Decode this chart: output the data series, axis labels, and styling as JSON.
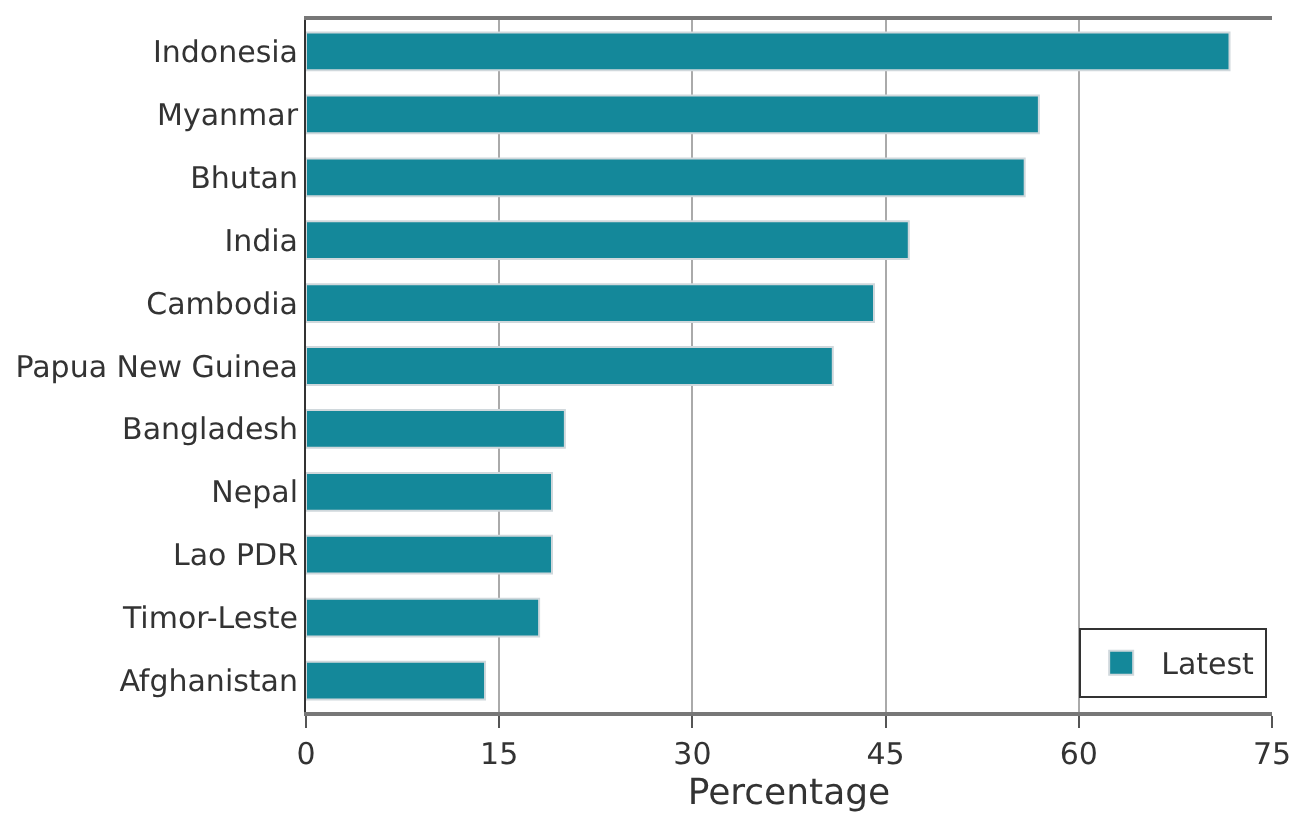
{
  "chart_data": {
    "type": "bar",
    "orientation": "horizontal",
    "xlabel": "Percentage",
    "categories": [
      "Indonesia",
      "Myanmar",
      "Bhutan",
      "India",
      "Cambodia",
      "Papua New Guinea",
      "Bangladesh",
      "Nepal",
      "Lao PDR",
      "Timor-Leste",
      "Afghanistan"
    ],
    "series": [
      {
        "name": "Latest",
        "color": "#14889a",
        "values": [
          71.7,
          56.9,
          55.8,
          46.8,
          44.1,
          40.9,
          20.1,
          19.1,
          19.1,
          18.1,
          13.9
        ]
      }
    ],
    "xlim": [
      0,
      75
    ],
    "xticks": [
      0,
      15,
      30,
      45,
      60,
      75
    ],
    "grid": "x",
    "legend": "bottom right"
  }
}
